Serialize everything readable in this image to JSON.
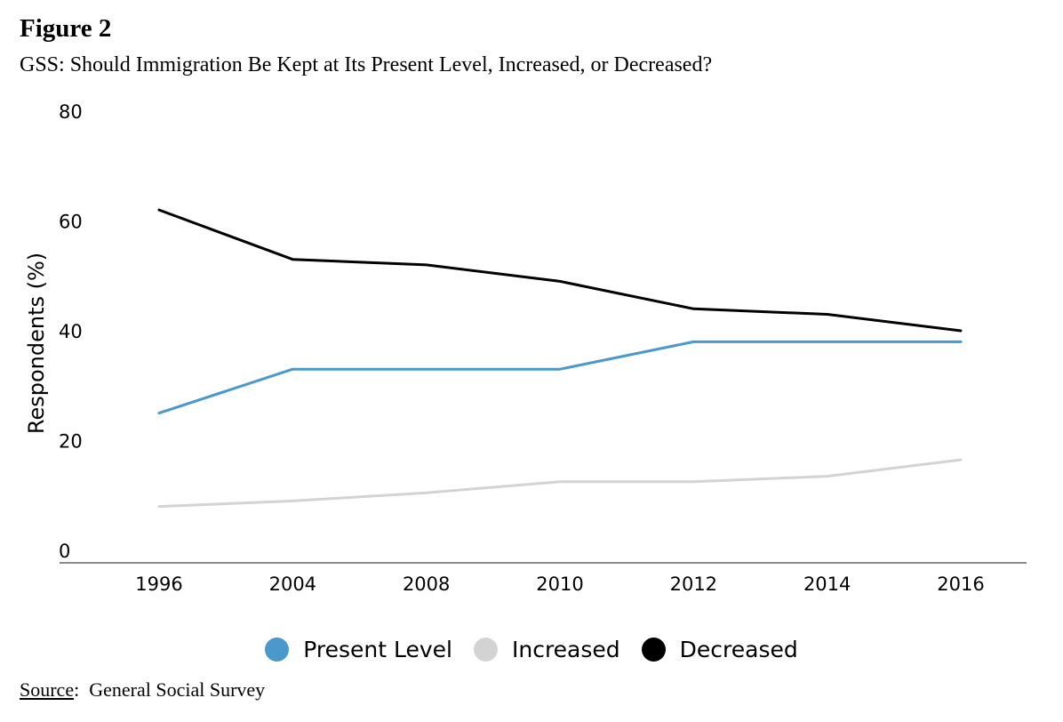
{
  "figure": {
    "label": "Figure 2",
    "title": "GSS: Should Immigration Be Kept at Its Present Level, Increased, or Decreased?"
  },
  "source": {
    "label": "Source",
    "separator": ":",
    "text": "General Social Survey"
  },
  "chart_data": {
    "type": "line",
    "title": "GSS: Should Immigration Be Kept at Its Present Level, Increased, or Decreased?",
    "xlabel": "",
    "ylabel": "Respondents (%)",
    "ylim": [
      0,
      80
    ],
    "yticks": [
      "0",
      "20",
      "40",
      "60",
      "80"
    ],
    "categories": [
      "1996",
      "2004",
      "2008",
      "2010",
      "2012",
      "2014",
      "2016"
    ],
    "grid": false,
    "legend_position": "bottom-center",
    "series": [
      {
        "name": "Present Level",
        "color": "#4a98cc",
        "values": [
          25,
          33,
          33,
          33,
          38,
          38,
          38
        ]
      },
      {
        "name": "Increased",
        "color": "#d3d3d3",
        "values": [
          8,
          9,
          10.5,
          12.5,
          12.5,
          13.5,
          16.5
        ]
      },
      {
        "name": "Decreased",
        "color": "#000000",
        "values": [
          62,
          53,
          52,
          49,
          44,
          43,
          40
        ]
      }
    ]
  }
}
